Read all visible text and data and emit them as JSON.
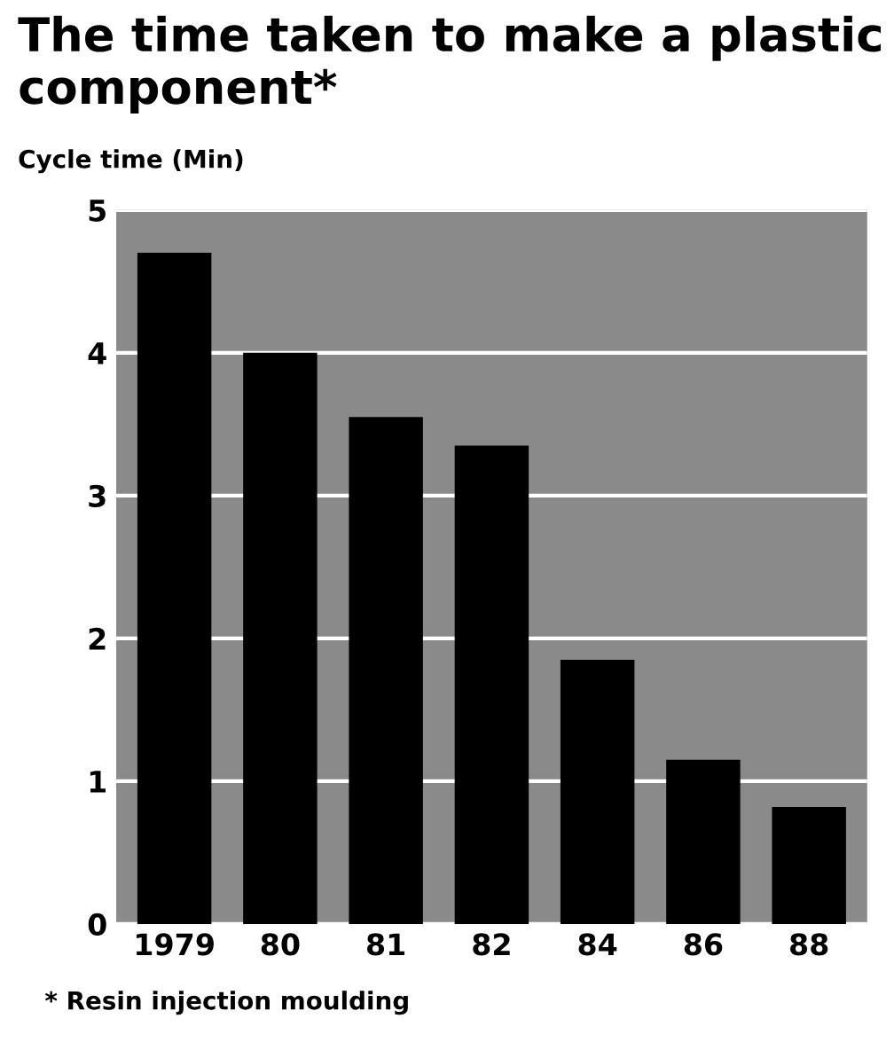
{
  "chart_data": {
    "type": "bar",
    "title": "The time taken to make a plastic component*",
    "ylabel": "Cycle time (Min)",
    "categories": [
      "1979",
      "80",
      "81",
      "82",
      "84",
      "86",
      "88"
    ],
    "series": [
      {
        "color": "#000000",
        "values": [
          4.7,
          4.0,
          3.55,
          3.35,
          1.85,
          1.15,
          0.82
        ]
      }
    ],
    "ylim": [
      0,
      5
    ],
    "yticks": [
      0,
      1,
      2,
      3,
      4,
      5
    ],
    "grid": "y",
    "annotations": [
      "* Resin injection moulding"
    ]
  }
}
